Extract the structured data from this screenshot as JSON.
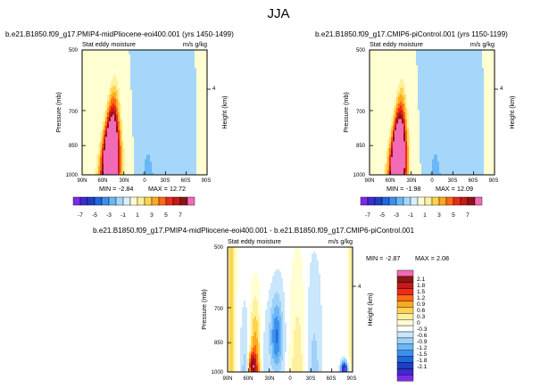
{
  "suptitle": "JJA",
  "palette_full": {
    "-7": "#7d2ae8",
    "-6": "#3c2ad2",
    "-5": "#1f3fc4",
    "-4": "#1f67de",
    "-3": "#3d8fee",
    "-2": "#6ab7f7",
    "-1": "#a6d7fb",
    "0": "#d6f1fd",
    "1": "#ffffd2",
    "2": "#fff0a0",
    "3": "#ffd34c",
    "4": "#ffaa1f",
    "5": "#ff6a14",
    "6": "#ee2a1a",
    "7": "#c41a1a",
    "8": "#8e1414",
    "9": "#f06ab6"
  },
  "palette_diff": {
    "-8": "#7d2ae8",
    "-7": "#3c2ad2",
    "-6": "#1f3fc4",
    "-5": "#1f67de",
    "-4": "#3d8fee",
    "-3": "#6ab7f7",
    "-2": "#9fd1f9",
    "-1": "#c9e7fc",
    "0": "#ffffff",
    "1": "#ffffd2",
    "2": "#fff0a0",
    "3": "#ffd34c",
    "4": "#ffaa1f",
    "5": "#ff6a14",
    "6": "#ee2a1a",
    "7": "#c41a1a",
    "8": "#8e1414",
    "9": "#f06ab6"
  },
  "chart_data": [
    {
      "type": "heatmap",
      "title": "b.e21.B1850.f09_g17.PMIP4-midPliocene-eoi400.001 (yrs 1450-1499)",
      "left_subtitle": "Stat eddy moisture",
      "right_subtitle": "m/s g/kg",
      "ylabel": "Pressure (mb)",
      "y2label": "Height (km)",
      "xticks": [
        "90N",
        "60N",
        "30N",
        "0",
        "30S",
        "60S",
        "90S"
      ],
      "yticks": [
        "500",
        "700",
        "850",
        "1000"
      ],
      "y2ticks": [
        "4"
      ],
      "min_label": "MIN =",
      "min_value": "-2.84",
      "max_label": "MAX =",
      "max_value": "12.72",
      "colorbar_labels": [
        "-7",
        "-5",
        "-3",
        "-1",
        "1",
        "3",
        "5",
        "7"
      ],
      "field": {
        "base": 0.7,
        "lat": 40,
        "lat_width": 10,
        "core_level": 890,
        "strength": 14.5,
        "spread": 1.15
      }
    },
    {
      "type": "heatmap",
      "title": "b.e21.B1850.f09_g17.CMIP6-piControl.001 (yrs 1150-1199)",
      "left_subtitle": "Stat eddy moisture",
      "right_subtitle": "m/s g/kg",
      "ylabel": "Pressure (mb)",
      "y2label": "Height (km)",
      "xticks": [
        "90N",
        "60N",
        "30N",
        "0",
        "30S",
        "60S",
        "90S"
      ],
      "yticks": [
        "500",
        "700",
        "850",
        "1000"
      ],
      "y2ticks": [
        "4"
      ],
      "min_label": "MIN =",
      "min_value": "-1.98",
      "max_label": "MAX =",
      "max_value": "12.09",
      "colorbar_labels": [
        "-7",
        "-5",
        "-3",
        "-1",
        "1",
        "3",
        "5",
        "7"
      ],
      "field": {
        "base": 0.7,
        "lat": 40,
        "lat_width": 9.5,
        "core_level": 895,
        "strength": 14,
        "spread": 1.1
      }
    },
    {
      "type": "heatmap",
      "title": "b.e21.B1850.f09_g17.PMIP4-midPliocene-eoi400.001 - b.e21.B1850.f09_g17.CMIP6-piControl.001",
      "left_subtitle": "Stat eddy moisture",
      "right_subtitle": "m/s g/kg",
      "ylabel": "Pressure (mb)",
      "y2label": "Height (km)",
      "xticks": [
        "90N",
        "60N",
        "30N",
        "0",
        "30S",
        "60S",
        "90S"
      ],
      "yticks": [
        "500",
        "700",
        "850",
        "1000"
      ],
      "y2ticks": [
        "4"
      ],
      "min_label": "MIN =",
      "min_value": "-2.87",
      "max_label": "MAX =",
      "max_value": "2.08",
      "colorbar_labels": [
        "2.1",
        "1.8",
        "1.5",
        "1.2",
        "0.9",
        "0.6",
        "0.3",
        "0",
        "-0.3",
        "-0.6",
        "-0.9",
        "-1.2",
        "-1.5",
        "-1.8",
        "-2.1"
      ],
      "field": {
        "base": 0.0,
        "lat": 38,
        "lat_width": 9,
        "core_level": 900,
        "strength": 2.2,
        "spread": 1.0
      }
    }
  ]
}
